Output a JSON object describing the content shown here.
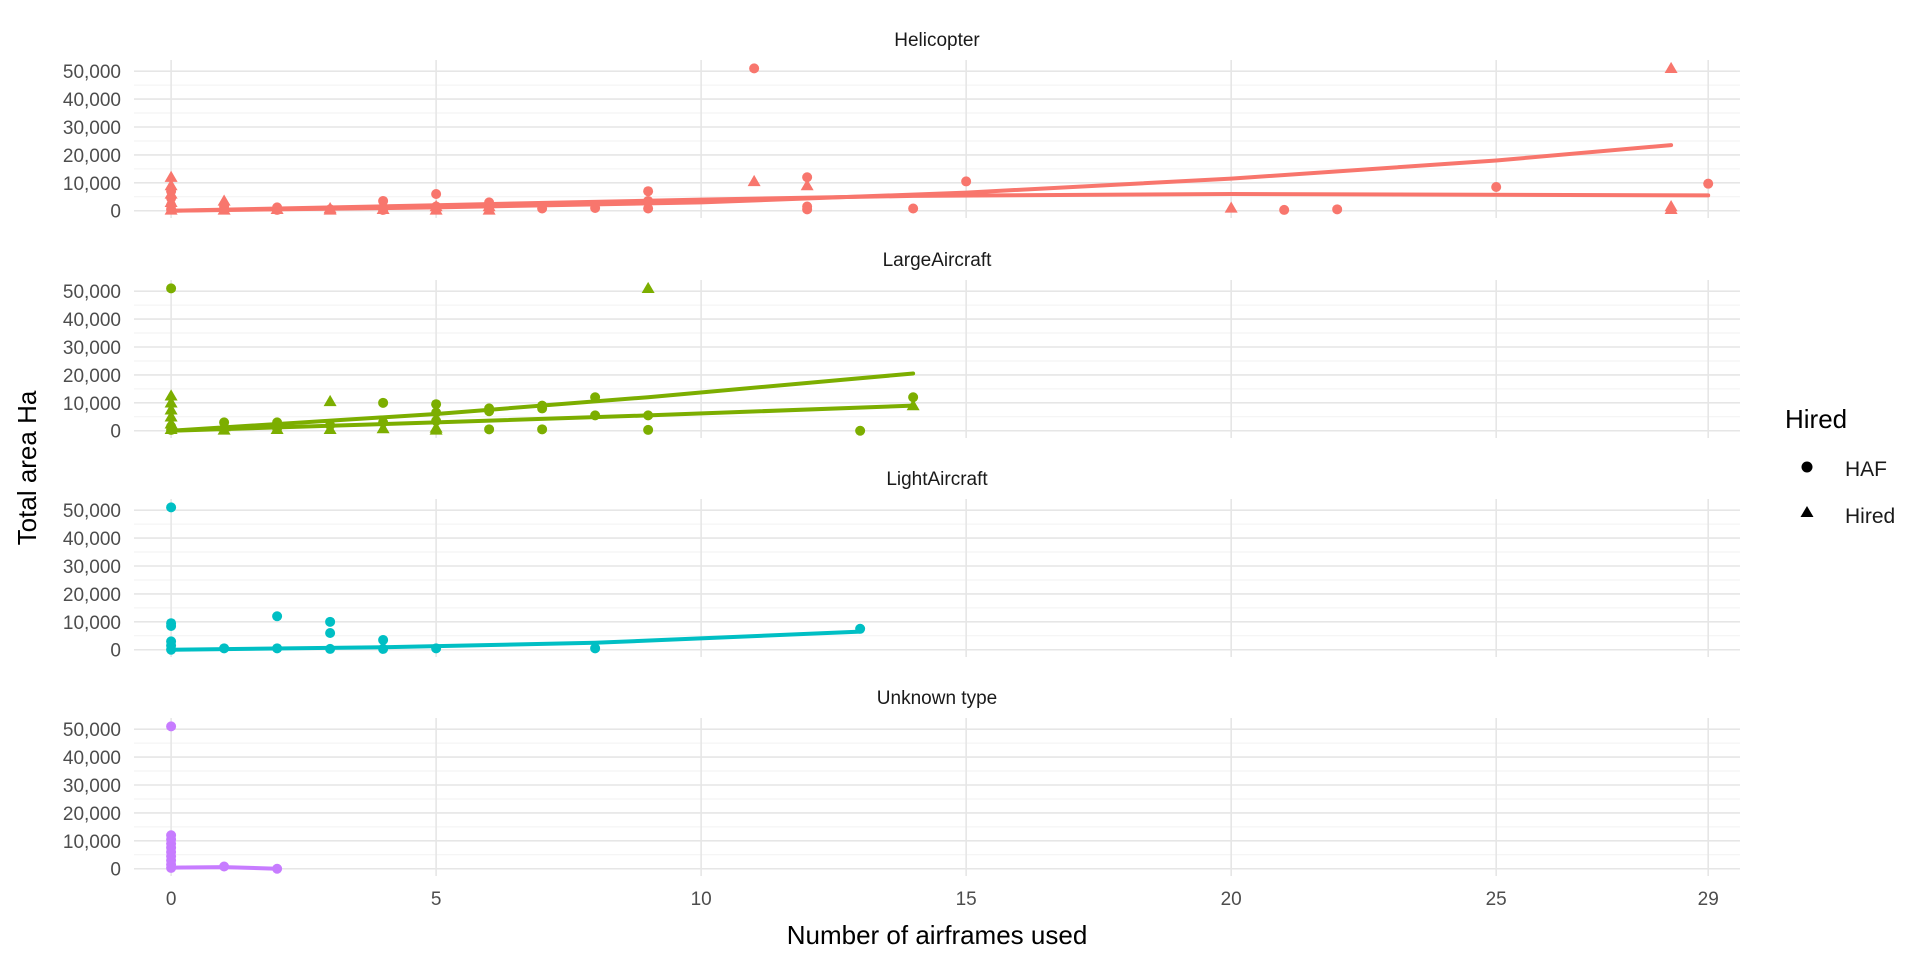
{
  "chart_data": {
    "type": "scatter",
    "xlabel": "Number of airframes used",
    "ylabel": "Total area Ha",
    "xlim": [
      -0.7,
      29.6
    ],
    "ylim": [
      -2600,
      54000
    ],
    "x_ticks": [
      0,
      5,
      10,
      15,
      20,
      25,
      29
    ],
    "y_ticks": [
      0,
      10000,
      20000,
      30000,
      40000,
      50000
    ],
    "y_tick_labels": [
      "0",
      "10,000",
      "20,000",
      "30,000",
      "40,000",
      "50,000"
    ],
    "grid": true,
    "legend": {
      "title": "Hired",
      "position": "right",
      "entries": [
        {
          "label": "HAF",
          "shape": "circle"
        },
        {
          "label": "Hired",
          "shape": "triangle"
        }
      ]
    },
    "panels": [
      {
        "label": "Helicopter",
        "color": "#F8766D",
        "points": [
          {
            "x": 0,
            "y": 500,
            "shape": "circle"
          },
          {
            "x": 0,
            "y": 2000,
            "shape": "circle"
          },
          {
            "x": 0,
            "y": 4500,
            "shape": "circle"
          },
          {
            "x": 0,
            "y": 7000,
            "shape": "circle"
          },
          {
            "x": 0,
            "y": 300,
            "shape": "triangle"
          },
          {
            "x": 0,
            "y": 3000,
            "shape": "triangle"
          },
          {
            "x": 0,
            "y": 6000,
            "shape": "triangle"
          },
          {
            "x": 0,
            "y": 9000,
            "shape": "triangle"
          },
          {
            "x": 0,
            "y": 12000,
            "shape": "triangle"
          },
          {
            "x": 1,
            "y": 500,
            "shape": "circle"
          },
          {
            "x": 1,
            "y": 1500,
            "shape": "circle"
          },
          {
            "x": 1,
            "y": 300,
            "shape": "triangle"
          },
          {
            "x": 1,
            "y": 3500,
            "shape": "triangle"
          },
          {
            "x": 2,
            "y": 300,
            "shape": "circle"
          },
          {
            "x": 2,
            "y": 1200,
            "shape": "circle"
          },
          {
            "x": 2,
            "y": 500,
            "shape": "triangle"
          },
          {
            "x": 3,
            "y": 500,
            "shape": "circle"
          },
          {
            "x": 3,
            "y": 300,
            "shape": "triangle"
          },
          {
            "x": 3,
            "y": 800,
            "shape": "triangle"
          },
          {
            "x": 4,
            "y": 300,
            "shape": "circle"
          },
          {
            "x": 4,
            "y": 1200,
            "shape": "circle"
          },
          {
            "x": 4,
            "y": 3500,
            "shape": "circle"
          },
          {
            "x": 4,
            "y": 500,
            "shape": "triangle"
          },
          {
            "x": 5,
            "y": 500,
            "shape": "circle"
          },
          {
            "x": 5,
            "y": 6000,
            "shape": "circle"
          },
          {
            "x": 5,
            "y": 1500,
            "shape": "circle"
          },
          {
            "x": 5,
            "y": 300,
            "shape": "triangle"
          },
          {
            "x": 5,
            "y": 1500,
            "shape": "triangle"
          },
          {
            "x": 6,
            "y": 1000,
            "shape": "circle"
          },
          {
            "x": 6,
            "y": 3000,
            "shape": "circle"
          },
          {
            "x": 6,
            "y": 300,
            "shape": "triangle"
          },
          {
            "x": 6,
            "y": 1500,
            "shape": "triangle"
          },
          {
            "x": 7,
            "y": 800,
            "shape": "circle"
          },
          {
            "x": 8,
            "y": 1000,
            "shape": "circle"
          },
          {
            "x": 9,
            "y": 800,
            "shape": "circle"
          },
          {
            "x": 9,
            "y": 3500,
            "shape": "circle"
          },
          {
            "x": 9,
            "y": 7000,
            "shape": "circle"
          },
          {
            "x": 11,
            "y": 51000,
            "shape": "circle"
          },
          {
            "x": 11,
            "y": 10500,
            "shape": "triangle"
          },
          {
            "x": 12,
            "y": 500,
            "shape": "circle"
          },
          {
            "x": 12,
            "y": 12000,
            "shape": "circle"
          },
          {
            "x": 12,
            "y": 1500,
            "shape": "circle"
          },
          {
            "x": 12,
            "y": 9000,
            "shape": "triangle"
          },
          {
            "x": 14,
            "y": 800,
            "shape": "circle"
          },
          {
            "x": 15,
            "y": 10500,
            "shape": "circle"
          },
          {
            "x": 20,
            "y": 1000,
            "shape": "triangle"
          },
          {
            "x": 21,
            "y": 300,
            "shape": "circle"
          },
          {
            "x": 22,
            "y": 500,
            "shape": "circle"
          },
          {
            "x": 25,
            "y": 8500,
            "shape": "circle"
          },
          {
            "x": 28.3,
            "y": 51000,
            "shape": "triangle"
          },
          {
            "x": 28.3,
            "y": 500,
            "shape": "triangle"
          },
          {
            "x": 28.3,
            "y": 1500,
            "shape": "triangle"
          },
          {
            "x": 29,
            "y": 9700,
            "shape": "circle"
          }
        ],
        "lines": [
          {
            "group": "HAF",
            "x": [
              0,
              5,
              10,
              14,
              20,
              29
            ],
            "y": [
              0,
              2000,
              4000,
              5300,
              6000,
              5500
            ]
          },
          {
            "group": "Hired",
            "x": [
              0,
              5,
              10,
              15,
              20,
              25,
              28.3
            ],
            "y": [
              0,
              1200,
              3000,
              6500,
              11500,
              18000,
              23500
            ]
          }
        ]
      },
      {
        "label": "LargeAircraft",
        "color": "#7CAE00",
        "points": [
          {
            "x": 0,
            "y": 51000,
            "shape": "circle"
          },
          {
            "x": 0,
            "y": 300,
            "shape": "circle"
          },
          {
            "x": 0,
            "y": 1500,
            "shape": "circle"
          },
          {
            "x": 0,
            "y": 12500,
            "shape": "triangle"
          },
          {
            "x": 0,
            "y": 10000,
            "shape": "triangle"
          },
          {
            "x": 0,
            "y": 7500,
            "shape": "triangle"
          },
          {
            "x": 0,
            "y": 5000,
            "shape": "triangle"
          },
          {
            "x": 0,
            "y": 2500,
            "shape": "triangle"
          },
          {
            "x": 0,
            "y": 500,
            "shape": "triangle"
          },
          {
            "x": 1,
            "y": 3000,
            "shape": "circle"
          },
          {
            "x": 1,
            "y": 800,
            "shape": "circle"
          },
          {
            "x": 1,
            "y": 300,
            "shape": "triangle"
          },
          {
            "x": 1,
            "y": 1500,
            "shape": "triangle"
          },
          {
            "x": 2,
            "y": 3000,
            "shape": "circle"
          },
          {
            "x": 2,
            "y": 800,
            "shape": "circle"
          },
          {
            "x": 2,
            "y": 500,
            "shape": "triangle"
          },
          {
            "x": 3,
            "y": 10500,
            "shape": "triangle"
          },
          {
            "x": 3,
            "y": 2000,
            "shape": "circle"
          },
          {
            "x": 3,
            "y": 500,
            "shape": "triangle"
          },
          {
            "x": 4,
            "y": 10000,
            "shape": "circle"
          },
          {
            "x": 4,
            "y": 800,
            "shape": "triangle"
          },
          {
            "x": 4,
            "y": 3000,
            "shape": "circle"
          },
          {
            "x": 5,
            "y": 9500,
            "shape": "circle"
          },
          {
            "x": 5,
            "y": 6500,
            "shape": "circle"
          },
          {
            "x": 5,
            "y": 3500,
            "shape": "circle"
          },
          {
            "x": 5,
            "y": 1000,
            "shape": "triangle"
          },
          {
            "x": 5,
            "y": 300,
            "shape": "triangle"
          },
          {
            "x": 6,
            "y": 8000,
            "shape": "circle"
          },
          {
            "x": 6,
            "y": 7000,
            "shape": "circle"
          },
          {
            "x": 6,
            "y": 500,
            "shape": "circle"
          },
          {
            "x": 7,
            "y": 9000,
            "shape": "circle"
          },
          {
            "x": 7,
            "y": 8000,
            "shape": "circle"
          },
          {
            "x": 7,
            "y": 500,
            "shape": "circle"
          },
          {
            "x": 8,
            "y": 12000,
            "shape": "circle"
          },
          {
            "x": 8,
            "y": 5500,
            "shape": "circle"
          },
          {
            "x": 9,
            "y": 51000,
            "shape": "triangle"
          },
          {
            "x": 9,
            "y": 5500,
            "shape": "circle"
          },
          {
            "x": 9,
            "y": 300,
            "shape": "circle"
          },
          {
            "x": 13,
            "y": 0,
            "shape": "circle"
          },
          {
            "x": 14,
            "y": 12000,
            "shape": "circle"
          },
          {
            "x": 14,
            "y": 9000,
            "shape": "triangle"
          }
        ],
        "lines": [
          {
            "group": "HAF",
            "x": [
              0,
              5,
              9,
              14
            ],
            "y": [
              0,
              6000,
              12000,
              20500
            ]
          },
          {
            "group": "Hired",
            "x": [
              0,
              5,
              9,
              14
            ],
            "y": [
              0,
              3000,
              5500,
              9000
            ]
          }
        ]
      },
      {
        "label": "LightAircraft",
        "color": "#00BFC4",
        "points": [
          {
            "x": 0,
            "y": 51000,
            "shape": "circle"
          },
          {
            "x": 0,
            "y": 9500,
            "shape": "circle"
          },
          {
            "x": 0,
            "y": 8500,
            "shape": "circle"
          },
          {
            "x": 0,
            "y": 3000,
            "shape": "circle"
          },
          {
            "x": 0,
            "y": 1500,
            "shape": "circle"
          },
          {
            "x": 0,
            "y": 0,
            "shape": "circle"
          },
          {
            "x": 1,
            "y": 500,
            "shape": "circle"
          },
          {
            "x": 2,
            "y": 12000,
            "shape": "circle"
          },
          {
            "x": 2,
            "y": 500,
            "shape": "circle"
          },
          {
            "x": 3,
            "y": 10000,
            "shape": "circle"
          },
          {
            "x": 3,
            "y": 6000,
            "shape": "circle"
          },
          {
            "x": 3,
            "y": 300,
            "shape": "circle"
          },
          {
            "x": 4,
            "y": 3500,
            "shape": "circle"
          },
          {
            "x": 4,
            "y": 300,
            "shape": "circle"
          },
          {
            "x": 5,
            "y": 500,
            "shape": "circle"
          },
          {
            "x": 8,
            "y": 500,
            "shape": "circle"
          },
          {
            "x": 13,
            "y": 7500,
            "shape": "circle"
          }
        ],
        "lines": [
          {
            "group": "HAF",
            "x": [
              0,
              4,
              8,
              13
            ],
            "y": [
              0,
              900,
              2500,
              6500
            ]
          }
        ]
      },
      {
        "label": "Unknown type",
        "color": "#C77CFF",
        "points": [
          {
            "x": 0,
            "y": 51000,
            "shape": "circle"
          },
          {
            "x": 0,
            "y": 12000,
            "shape": "circle"
          },
          {
            "x": 0,
            "y": 10500,
            "shape": "circle"
          },
          {
            "x": 0,
            "y": 9000,
            "shape": "circle"
          },
          {
            "x": 0,
            "y": 7500,
            "shape": "circle"
          },
          {
            "x": 0,
            "y": 6000,
            "shape": "circle"
          },
          {
            "x": 0,
            "y": 4500,
            "shape": "circle"
          },
          {
            "x": 0,
            "y": 3000,
            "shape": "circle"
          },
          {
            "x": 0,
            "y": 1500,
            "shape": "circle"
          },
          {
            "x": 0,
            "y": 300,
            "shape": "circle"
          },
          {
            "x": 1,
            "y": 800,
            "shape": "circle"
          },
          {
            "x": 2,
            "y": 0,
            "shape": "circle"
          }
        ],
        "lines": [
          {
            "group": "HAF",
            "x": [
              0,
              1,
              2
            ],
            "y": [
              400,
              600,
              0
            ]
          }
        ]
      }
    ]
  }
}
